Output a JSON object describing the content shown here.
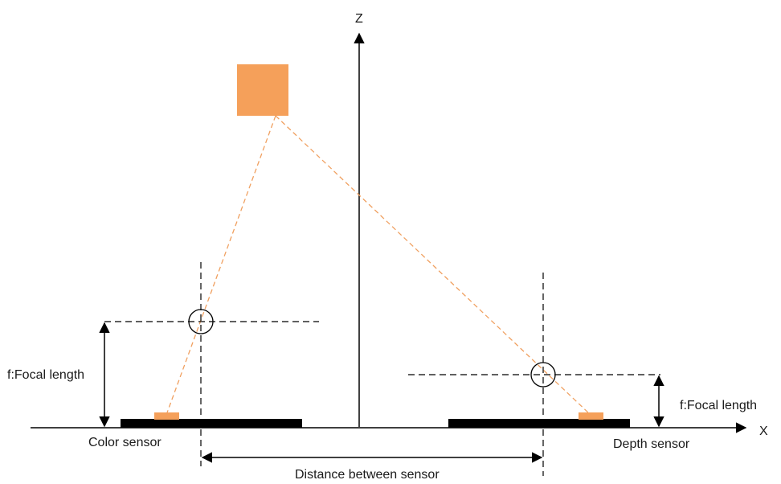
{
  "axes": {
    "z_label": "Z",
    "x_label": "X"
  },
  "labels": {
    "focal_left": "f:Focal length",
    "focal_right": "f:Focal length",
    "color_sensor": "Color sensor",
    "depth_sensor": "Depth sensor",
    "baseline": "Distance between sensor"
  },
  "colors": {
    "object": "#F5A05A",
    "projection": "#F5A05A",
    "ray": "#F0A060",
    "sensor": "#000000",
    "line": "#000000"
  }
}
